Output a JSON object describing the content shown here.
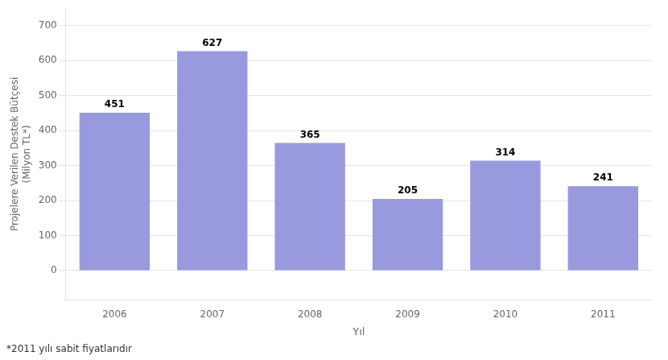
{
  "chart_data": {
    "type": "bar",
    "categories": [
      "2006",
      "2007",
      "2008",
      "2009",
      "2010",
      "2011"
    ],
    "values": [
      451,
      627,
      365,
      205,
      314,
      241
    ],
    "color": "#9999dd",
    "ylabel": "Projelere Verilen Destek Bütçesi\n(Milyon TL*)",
    "xlabel": "Yıl",
    "annotations": [
      "*2011 yılı sabit fiyatlarıdır"
    ],
    "ylim": [
      -84.375,
      750
    ],
    "yticks": [
      0,
      100,
      200,
      300,
      400,
      500,
      600,
      700
    ],
    "grid": true,
    "data_labels": true
  }
}
